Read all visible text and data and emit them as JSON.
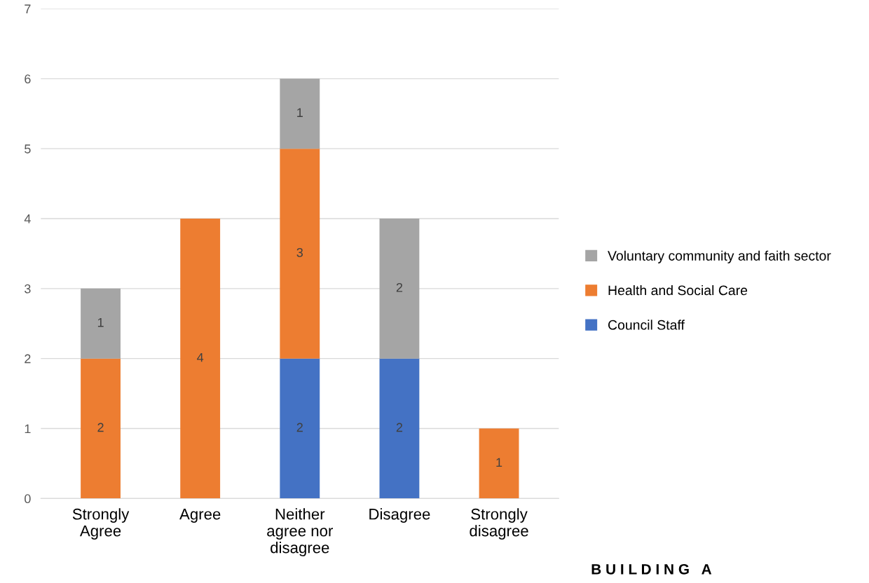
{
  "chart_data": {
    "type": "bar",
    "stacked": true,
    "categories": [
      "Strongly\nAgree",
      "Agree",
      "Neither\nagree nor\ndisagree",
      "Disagree",
      "Strongly\ndisagree"
    ],
    "series": [
      {
        "name": "Council Staff",
        "color": "#4472c4",
        "values": [
          0,
          0,
          2,
          2,
          0
        ],
        "value_labels": [
          null,
          null,
          "2",
          "2",
          null
        ]
      },
      {
        "name": "Health and Social Care",
        "color": "#ed7d31",
        "values": [
          2,
          4,
          3,
          0,
          1
        ],
        "value_labels": [
          "2",
          "4",
          "3",
          null,
          "1"
        ]
      },
      {
        "name": "Voluntary community and faith sector",
        "color": "#a5a5a5",
        "values": [
          1,
          0,
          1,
          2,
          0
        ],
        "value_labels": [
          "1",
          null,
          "1",
          "2",
          null
        ]
      }
    ],
    "ylim": [
      0,
      7
    ],
    "yticks": [
      0,
      1,
      2,
      3,
      4,
      5,
      6,
      7
    ],
    "grid": "y",
    "legend": "right",
    "annotations": [
      "B U I L D I N G   A"
    ]
  }
}
